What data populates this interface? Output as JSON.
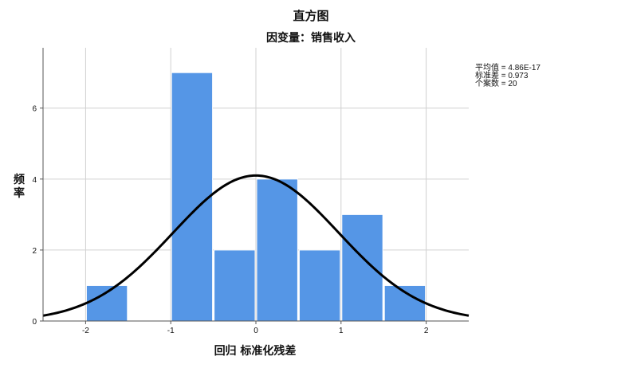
{
  "chart_data": {
    "type": "bar",
    "title": "直方图",
    "subtitle": "因变量：销售收入",
    "xlabel": "回归 标准化残差",
    "ylabel": "频率",
    "xlim": [
      -2.5,
      2.5
    ],
    "ylim": [
      0,
      7.7
    ],
    "x_ticks": [
      "-2",
      "-1",
      "0",
      "1",
      "2"
    ],
    "y_ticks": [
      "0",
      "2",
      "4",
      "6"
    ],
    "bins": [
      {
        "from": -2.0,
        "to": -1.5,
        "value": 1
      },
      {
        "from": -1.5,
        "to": -1.0,
        "value": 0
      },
      {
        "from": -1.0,
        "to": -0.5,
        "value": 7
      },
      {
        "from": -0.5,
        "to": 0.0,
        "value": 2
      },
      {
        "from": 0.0,
        "to": 0.5,
        "value": 4
      },
      {
        "from": 0.5,
        "to": 1.0,
        "value": 2
      },
      {
        "from": 1.0,
        "to": 1.5,
        "value": 3
      },
      {
        "from": 1.5,
        "to": 2.0,
        "value": 1
      }
    ],
    "normal_curve": {
      "mean": 0,
      "sd": 0.973,
      "n": 20,
      "bin_width": 0.5
    },
    "bar_color": "#5596e6",
    "curve_color": "#000000",
    "grid": true,
    "stats": {
      "mean": "平均值 = 4.86E-17",
      "sd": "标准差 = 0.973",
      "n": "个案数 = 20"
    }
  }
}
